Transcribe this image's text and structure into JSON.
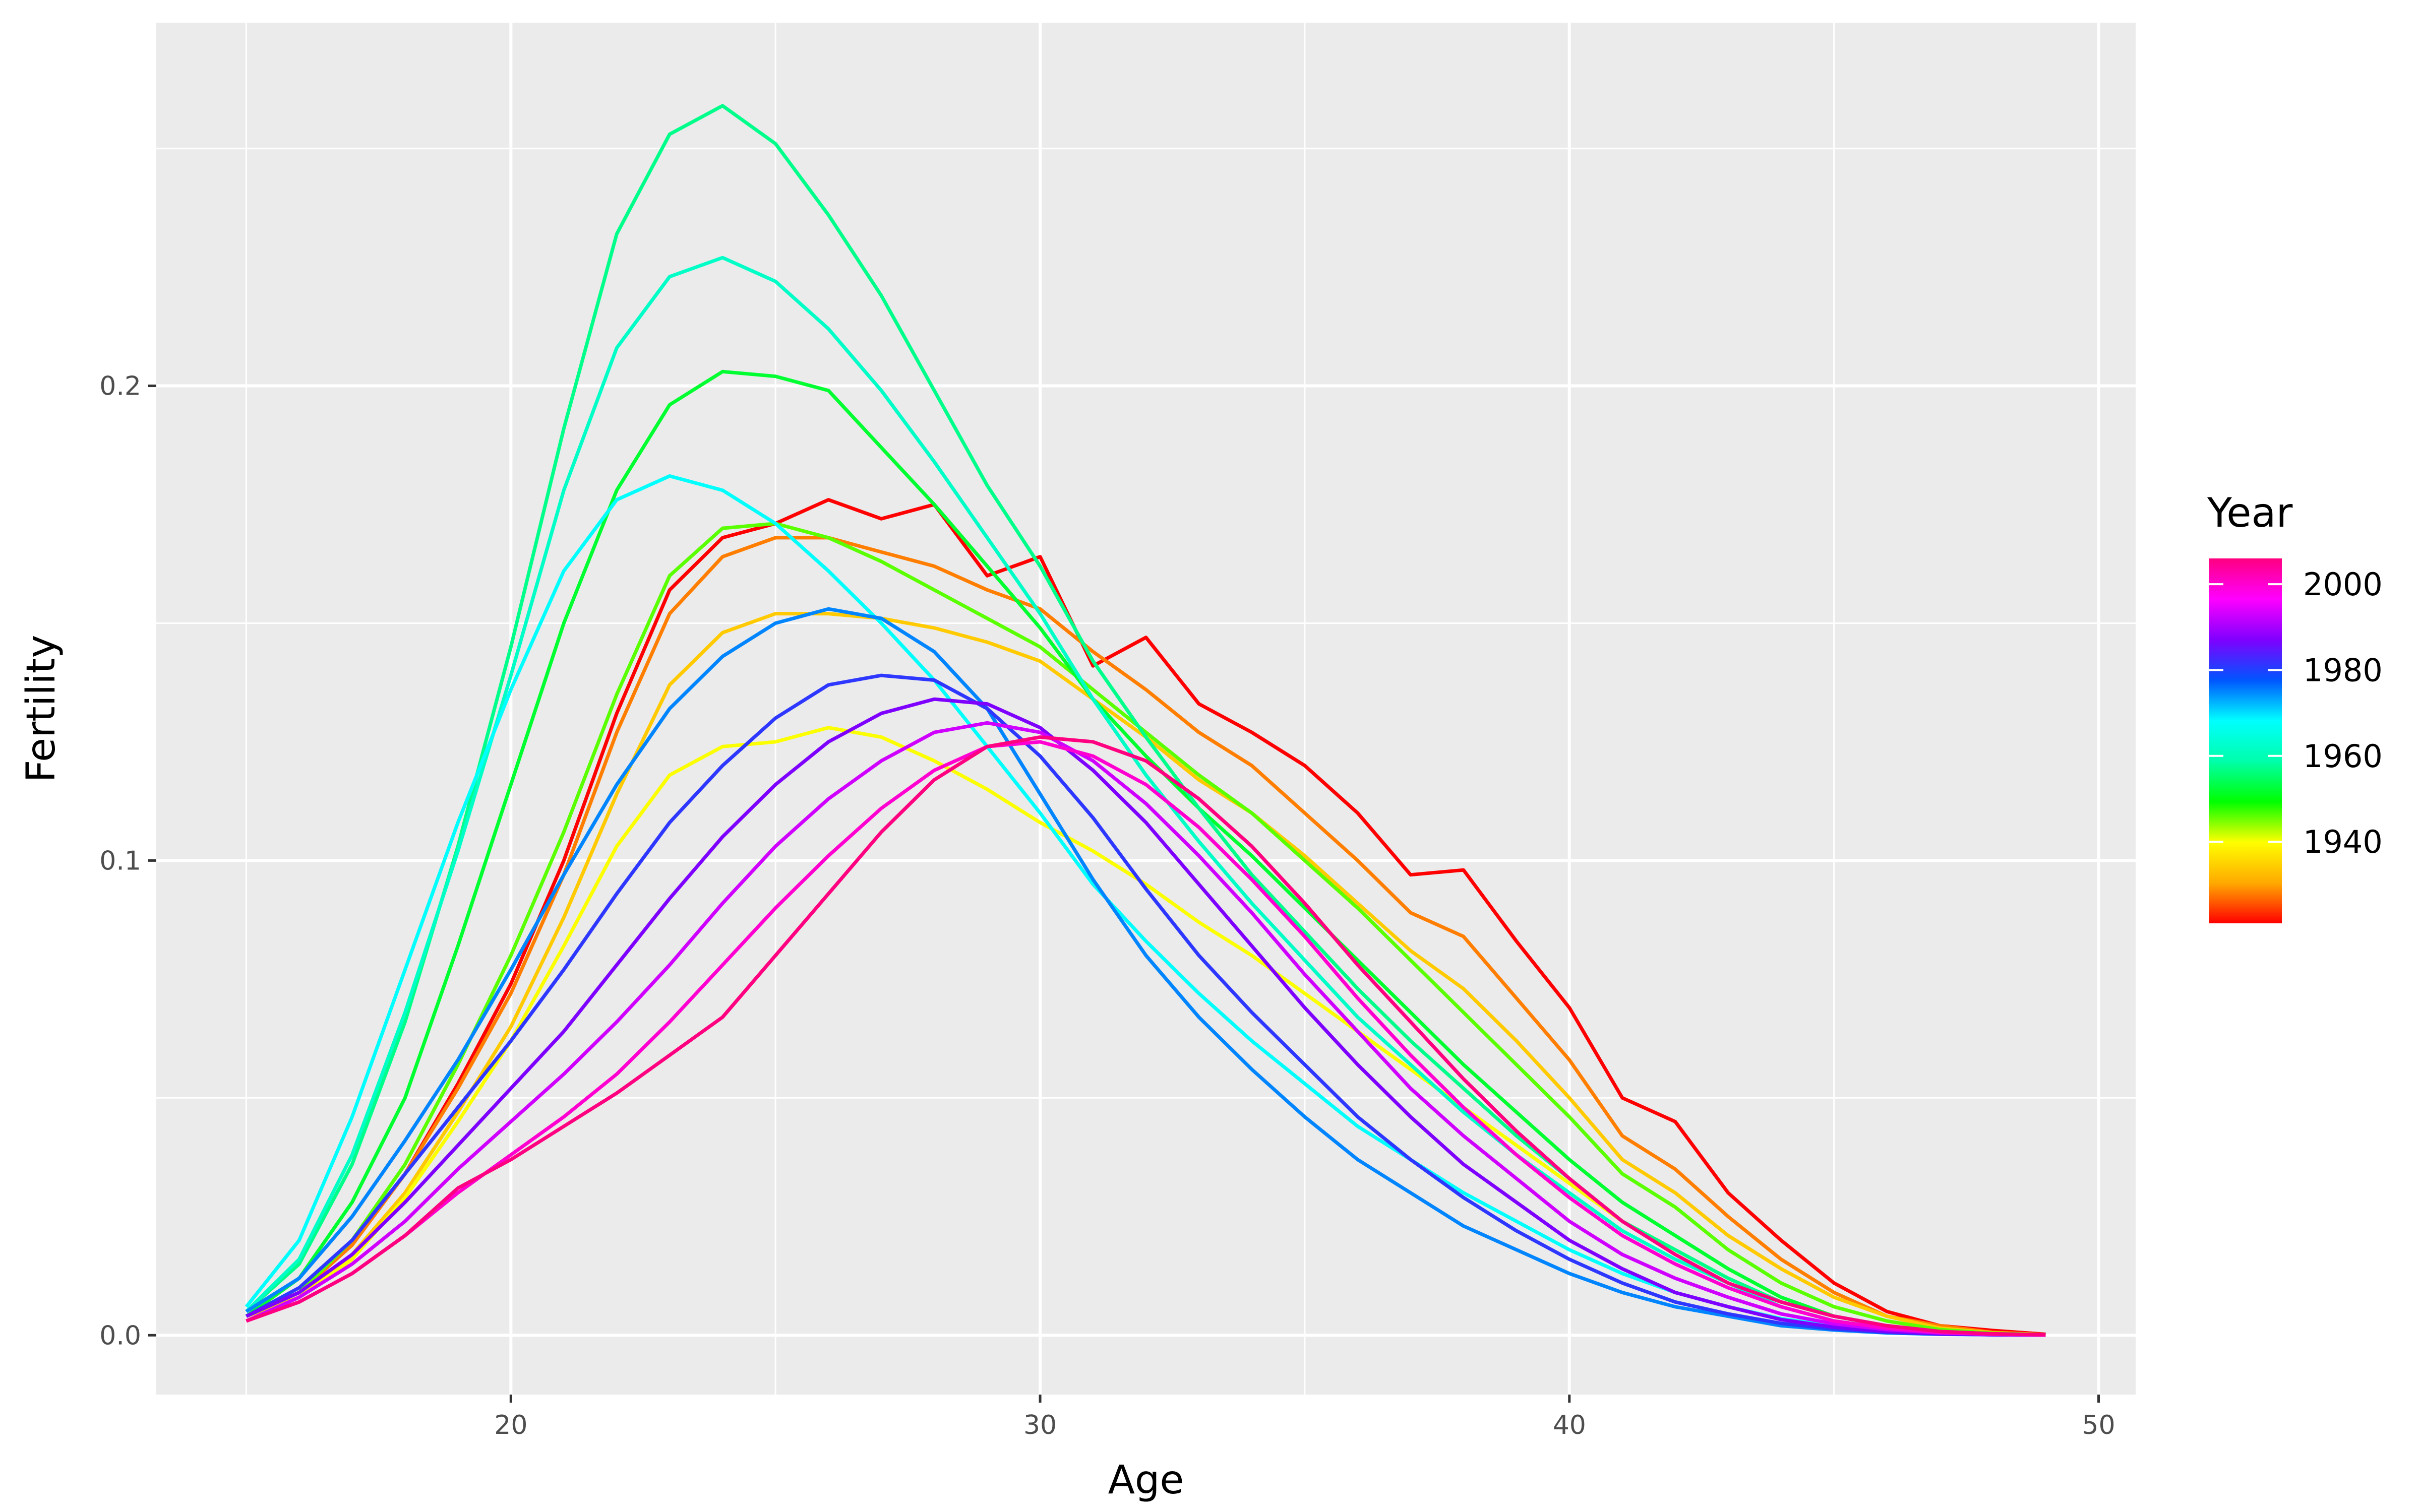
{
  "chart_data": {
    "type": "line",
    "xlabel": "Age",
    "ylabel": "Fertility",
    "xlim": [
      13.3,
      50.7
    ],
    "ylim": [
      -0.0125,
      0.2765
    ],
    "x_ticks": [
      20,
      30,
      40,
      50
    ],
    "x_tick_labels": [
      "20",
      "30",
      "40",
      "50"
    ],
    "y_ticks": [
      0.0,
      0.1,
      0.2
    ],
    "y_tick_labels": [
      "0.0",
      "0.1",
      "0.2"
    ],
    "x": [
      15,
      16,
      17,
      18,
      19,
      20,
      21,
      22,
      23,
      24,
      25,
      26,
      27,
      28,
      29,
      30,
      31,
      32,
      33,
      34,
      35,
      36,
      37,
      38,
      39,
      40,
      41,
      42,
      43,
      44,
      45,
      46,
      47,
      48,
      49
    ],
    "grid": true,
    "panel_background": "#ebebeb",
    "grid_color": "#ffffff",
    "legend": {
      "title": "Year",
      "position": "right",
      "type": "colorbar",
      "range": [
        1921,
        2006
      ],
      "ticks": [
        1940,
        1960,
        1980,
        2000
      ],
      "tick_labels": [
        "1940",
        "1960",
        "1980",
        "2000"
      ],
      "colors": [
        "#ff0000",
        "#ffaa00",
        "#ffff00",
        "#00ff00",
        "#00ffaa",
        "#00ffff",
        "#0055ff",
        "#8000ff",
        "#ff00ff",
        "#ff0080"
      ]
    },
    "series": [
      {
        "year": 1921,
        "values": [
          0.004,
          0.009,
          0.019,
          0.034,
          0.053,
          0.074,
          0.1,
          0.131,
          0.157,
          0.168,
          0.171,
          0.176,
          0.172,
          0.175,
          0.16,
          0.164,
          0.141,
          0.147,
          0.133,
          0.127,
          0.12,
          0.11,
          0.097,
          0.098,
          0.083,
          0.069,
          0.05,
          0.045,
          0.03,
          0.02,
          0.011,
          0.005,
          0.002,
          0.001,
          0.0002
        ]
      },
      {
        "year": 1928,
        "values": [
          0.004,
          0.009,
          0.019,
          0.034,
          0.052,
          0.072,
          0.097,
          0.127,
          0.152,
          0.164,
          0.168,
          0.168,
          0.165,
          0.162,
          0.157,
          0.153,
          0.144,
          0.136,
          0.127,
          0.12,
          0.11,
          0.1,
          0.089,
          0.084,
          0.071,
          0.058,
          0.042,
          0.035,
          0.025,
          0.016,
          0.009,
          0.004,
          0.002,
          0.0006,
          0.0001
        ]
      },
      {
        "year": 1934,
        "values": [
          0.004,
          0.008,
          0.017,
          0.03,
          0.047,
          0.065,
          0.088,
          0.114,
          0.137,
          0.148,
          0.152,
          0.152,
          0.151,
          0.149,
          0.146,
          0.142,
          0.134,
          0.126,
          0.117,
          0.11,
          0.101,
          0.091,
          0.081,
          0.073,
          0.062,
          0.05,
          0.037,
          0.03,
          0.021,
          0.014,
          0.008,
          0.004,
          0.0015,
          0.0005,
          0.0001
        ]
      },
      {
        "year": 1940,
        "values": [
          0.003,
          0.008,
          0.016,
          0.029,
          0.045,
          0.062,
          0.082,
          0.103,
          0.118,
          0.124,
          0.125,
          0.128,
          0.126,
          0.121,
          0.115,
          0.108,
          0.102,
          0.095,
          0.087,
          0.08,
          0.072,
          0.064,
          0.056,
          0.048,
          0.04,
          0.032,
          0.024,
          0.018,
          0.012,
          0.007,
          0.004,
          0.002,
          0.0008,
          0.0003,
          0.0001
        ]
      },
      {
        "year": 1946,
        "values": [
          0.004,
          0.009,
          0.02,
          0.036,
          0.057,
          0.08,
          0.106,
          0.135,
          0.16,
          0.17,
          0.171,
          0.168,
          0.163,
          0.157,
          0.151,
          0.145,
          0.136,
          0.127,
          0.118,
          0.11,
          0.1,
          0.09,
          0.079,
          0.068,
          0.057,
          0.046,
          0.034,
          0.027,
          0.018,
          0.011,
          0.006,
          0.003,
          0.0012,
          0.0004,
          0.0001
        ]
      },
      {
        "year": 1952,
        "values": [
          0.004,
          0.012,
          0.028,
          0.05,
          0.082,
          0.116,
          0.15,
          0.178,
          0.196,
          0.203,
          0.202,
          0.199,
          0.187,
          0.175,
          0.162,
          0.149,
          0.134,
          0.122,
          0.111,
          0.101,
          0.09,
          0.079,
          0.068,
          0.057,
          0.047,
          0.037,
          0.028,
          0.021,
          0.014,
          0.008,
          0.004,
          0.002,
          0.0008,
          0.0003,
          0.0001
        ]
      },
      {
        "year": 1957,
        "values": [
          0.005,
          0.015,
          0.036,
          0.066,
          0.103,
          0.145,
          0.191,
          0.232,
          0.253,
          0.259,
          0.251,
          0.236,
          0.219,
          0.199,
          0.179,
          0.162,
          0.142,
          0.126,
          0.111,
          0.097,
          0.085,
          0.073,
          0.062,
          0.052,
          0.042,
          0.033,
          0.024,
          0.018,
          0.012,
          0.007,
          0.004,
          0.002,
          0.0007,
          0.0002,
          0.0001
        ]
      },
      {
        "year": 1962,
        "values": [
          0.005,
          0.016,
          0.038,
          0.068,
          0.102,
          0.139,
          0.178,
          0.208,
          0.223,
          0.227,
          0.222,
          0.212,
          0.199,
          0.184,
          0.168,
          0.152,
          0.134,
          0.118,
          0.104,
          0.091,
          0.079,
          0.067,
          0.057,
          0.047,
          0.038,
          0.03,
          0.022,
          0.016,
          0.011,
          0.006,
          0.003,
          0.0015,
          0.0006,
          0.0002,
          0.0001
        ]
      },
      {
        "year": 1968,
        "values": [
          0.006,
          0.02,
          0.046,
          0.077,
          0.108,
          0.136,
          0.161,
          0.176,
          0.181,
          0.178,
          0.171,
          0.161,
          0.15,
          0.138,
          0.124,
          0.11,
          0.095,
          0.083,
          0.072,
          0.062,
          0.053,
          0.044,
          0.037,
          0.03,
          0.024,
          0.018,
          0.013,
          0.009,
          0.006,
          0.0035,
          0.0019,
          0.0009,
          0.0004,
          0.00015,
          5e-05
        ]
      },
      {
        "year": 1975,
        "values": [
          0.005,
          0.012,
          0.025,
          0.041,
          0.058,
          0.077,
          0.097,
          0.116,
          0.132,
          0.143,
          0.15,
          0.153,
          0.151,
          0.144,
          0.132,
          0.114,
          0.096,
          0.08,
          0.067,
          0.056,
          0.046,
          0.037,
          0.03,
          0.023,
          0.018,
          0.013,
          0.009,
          0.006,
          0.004,
          0.002,
          0.0011,
          0.0005,
          0.0002,
          0.0001,
          3e-05
        ]
      },
      {
        "year": 1981,
        "values": [
          0.004,
          0.01,
          0.02,
          0.034,
          0.048,
          0.062,
          0.077,
          0.093,
          0.108,
          0.12,
          0.13,
          0.137,
          0.139,
          0.138,
          0.132,
          0.122,
          0.109,
          0.094,
          0.08,
          0.068,
          0.057,
          0.046,
          0.037,
          0.029,
          0.022,
          0.016,
          0.011,
          0.007,
          0.0045,
          0.0025,
          0.0013,
          0.0006,
          0.00025,
          0.0001,
          3e-05
        ]
      },
      {
        "year": 1987,
        "values": [
          0.004,
          0.009,
          0.017,
          0.028,
          0.04,
          0.052,
          0.064,
          0.078,
          0.092,
          0.105,
          0.116,
          0.125,
          0.131,
          0.134,
          0.133,
          0.128,
          0.119,
          0.108,
          0.095,
          0.082,
          0.069,
          0.057,
          0.046,
          0.036,
          0.028,
          0.02,
          0.014,
          0.009,
          0.006,
          0.0033,
          0.0017,
          0.0008,
          0.0003,
          0.0001,
          3e-05
        ]
      },
      {
        "year": 1993,
        "values": [
          0.003,
          0.008,
          0.015,
          0.024,
          0.035,
          0.045,
          0.055,
          0.066,
          0.078,
          0.091,
          0.103,
          0.113,
          0.121,
          0.127,
          0.129,
          0.127,
          0.121,
          0.112,
          0.101,
          0.089,
          0.076,
          0.064,
          0.052,
          0.042,
          0.033,
          0.024,
          0.017,
          0.012,
          0.008,
          0.0045,
          0.0024,
          0.0012,
          0.0005,
          0.0002,
          5e-05
        ]
      },
      {
        "year": 2000,
        "values": [
          0.003,
          0.007,
          0.013,
          0.021,
          0.03,
          0.038,
          0.046,
          0.055,
          0.066,
          0.078,
          0.09,
          0.101,
          0.111,
          0.119,
          0.124,
          0.125,
          0.122,
          0.116,
          0.107,
          0.096,
          0.084,
          0.071,
          0.059,
          0.048,
          0.038,
          0.029,
          0.021,
          0.015,
          0.01,
          0.006,
          0.003,
          0.0015,
          0.0006,
          0.0002,
          5e-05
        ]
      },
      {
        "year": 2006,
        "values": [
          0.003,
          0.007,
          0.013,
          0.021,
          0.031,
          0.037,
          0.044,
          0.051,
          0.059,
          0.067,
          0.08,
          0.093,
          0.106,
          0.117,
          0.124,
          0.126,
          0.125,
          0.121,
          0.113,
          0.103,
          0.091,
          0.078,
          0.066,
          0.054,
          0.043,
          0.033,
          0.024,
          0.017,
          0.011,
          0.007,
          0.004,
          0.002,
          0.0008,
          0.0003,
          0.0001
        ]
      }
    ]
  }
}
